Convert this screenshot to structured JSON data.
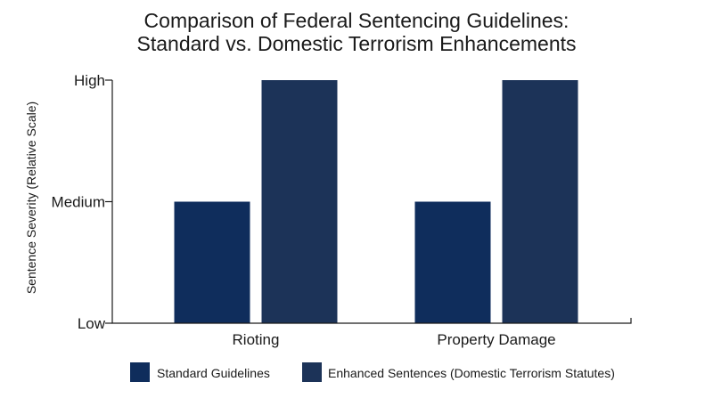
{
  "chart_data": {
    "type": "bar",
    "title_line1": "Comparison of Federal Sentencing Guidelines:",
    "title_line2": "Standard vs. Domestic Terrorism Enhancements",
    "xlabel": "",
    "ylabel": "Sentence Severity (Relative Scale)",
    "categories": [
      "Rioting",
      "Property Damage"
    ],
    "y_ticks": [
      {
        "label": "Low",
        "value": 0
      },
      {
        "label": "Medium",
        "value": 1
      },
      {
        "label": "High",
        "value": 2
      }
    ],
    "ylim": [
      0,
      2
    ],
    "series": [
      {
        "name": "Standard Guidelines",
        "values": [
          1,
          1
        ],
        "color": "#0f2d5c"
      },
      {
        "name": "Enhanced Sentences (Domestic Terrorism Statutes)",
        "values": [
          2,
          2
        ],
        "color": "#1c3358"
      }
    ],
    "grid": false,
    "legend_position": "bottom"
  }
}
